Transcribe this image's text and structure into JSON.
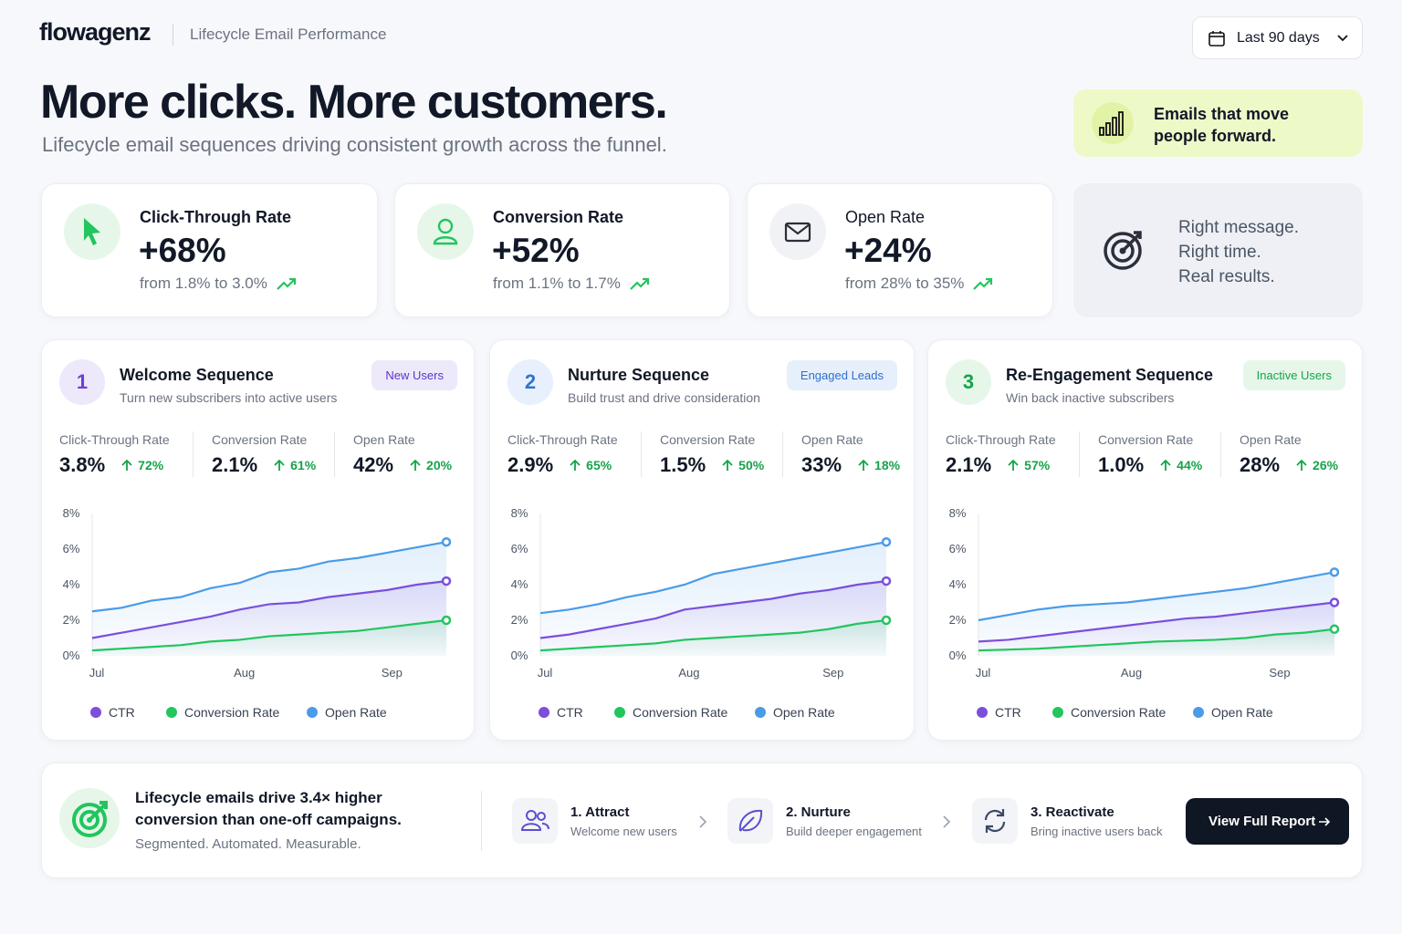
{
  "header": {
    "brand": "flowagenz",
    "subtitle": "Lifecycle Email Performance",
    "date_range": "Last 90 days"
  },
  "hero": {
    "title": "More clicks. More customers.",
    "subtitle": "Lifecycle email sequences driving consistent growth across the funnel.",
    "callout": [
      "Emails that move",
      "people forward."
    ]
  },
  "kpis": [
    {
      "label": "Click-Through Rate",
      "value": "+68%",
      "detail": "from 1.8% to 3.0%"
    },
    {
      "label": "Conversion Rate",
      "value": "+52%",
      "detail": "from 1.1% to 1.7%"
    },
    {
      "label": "Open Rate",
      "value": "+24%",
      "detail": "from 28% to 35%"
    }
  ],
  "tagline": [
    "Right message.",
    "Right time.",
    "Real results."
  ],
  "sequences": [
    {
      "number": "1",
      "title": "Welcome Sequence",
      "description": "Turn new subscribers into active users",
      "badge": "New Users",
      "metrics": [
        {
          "label": "Click-Through Rate",
          "value": "3.8%",
          "change": "72%"
        },
        {
          "label": "Conversion Rate",
          "value": "2.1%",
          "change": "61%"
        },
        {
          "label": "Open Rate",
          "value": "42%",
          "change": "20%"
        }
      ]
    },
    {
      "number": "2",
      "title": "Nurture Sequence",
      "description": "Build trust and drive consideration",
      "badge": "Engaged Leads",
      "metrics": [
        {
          "label": "Click-Through Rate",
          "value": "2.9%",
          "change": "65%"
        },
        {
          "label": "Conversion Rate",
          "value": "1.5%",
          "change": "50%"
        },
        {
          "label": "Open Rate",
          "value": "33%",
          "change": "18%"
        }
      ]
    },
    {
      "number": "3",
      "title": "Re-Engagement Sequence",
      "description": "Win back inactive subscribers",
      "badge": "Inactive Users",
      "metrics": [
        {
          "label": "Click-Through Rate",
          "value": "2.1%",
          "change": "57%"
        },
        {
          "label": "Conversion Rate",
          "value": "1.0%",
          "change": "44%"
        },
        {
          "label": "Open Rate",
          "value": "28%",
          "change": "26%"
        }
      ]
    }
  ],
  "chart_data": [
    {
      "type": "line",
      "categories": [
        "Jul",
        null,
        null,
        null,
        null,
        "Aug",
        null,
        null,
        null,
        null,
        "Sep",
        null,
        null
      ],
      "ylim": [
        0,
        8
      ],
      "yticks": [
        {
          "value": 0,
          "label": "0%"
        },
        {
          "value": 2,
          "label": "2%"
        },
        {
          "value": 4,
          "label": "4%"
        },
        {
          "value": 6,
          "label": "6%"
        },
        {
          "value": 8,
          "label": "8%"
        }
      ],
      "grid": false,
      "series": [
        {
          "name": "CTR",
          "color": "#7b4fdc",
          "values": [
            1.0,
            1.3,
            1.6,
            1.9,
            2.2,
            2.6,
            2.9,
            3.0,
            3.3,
            3.5,
            3.7,
            4.0,
            4.2
          ]
        },
        {
          "name": "Conversion Rate",
          "color": "#22c55e",
          "values": [
            0.3,
            0.4,
            0.5,
            0.6,
            0.8,
            0.9,
            1.1,
            1.2,
            1.3,
            1.4,
            1.6,
            1.8,
            2.0
          ]
        },
        {
          "name": "Open Rate",
          "color": "#4a9be8",
          "values": [
            2.5,
            2.7,
            3.1,
            3.3,
            3.8,
            4.1,
            4.7,
            4.9,
            5.3,
            5.5,
            5.8,
            6.1,
            6.4
          ]
        }
      ]
    },
    {
      "type": "line",
      "categories": [
        "Jul",
        null,
        null,
        null,
        null,
        "Aug",
        null,
        null,
        null,
        null,
        "Sep",
        null,
        null
      ],
      "ylim": [
        0,
        8
      ],
      "yticks": [
        {
          "value": 0,
          "label": "0%"
        },
        {
          "value": 2,
          "label": "2%"
        },
        {
          "value": 4,
          "label": "4%"
        },
        {
          "value": 6,
          "label": "6%"
        },
        {
          "value": 8,
          "label": "8%"
        }
      ],
      "grid": false,
      "series": [
        {
          "name": "CTR",
          "color": "#7b4fdc",
          "values": [
            1.0,
            1.2,
            1.5,
            1.8,
            2.1,
            2.6,
            2.8,
            3.0,
            3.2,
            3.5,
            3.7,
            4.0,
            4.2
          ]
        },
        {
          "name": "Conversion Rate",
          "color": "#22c55e",
          "values": [
            0.3,
            0.4,
            0.5,
            0.6,
            0.7,
            0.9,
            1.0,
            1.1,
            1.2,
            1.3,
            1.5,
            1.8,
            2.0
          ]
        },
        {
          "name": "Open Rate",
          "color": "#4a9be8",
          "values": [
            2.4,
            2.6,
            2.9,
            3.3,
            3.6,
            4.0,
            4.6,
            4.9,
            5.2,
            5.5,
            5.8,
            6.1,
            6.4
          ]
        }
      ]
    },
    {
      "type": "line",
      "categories": [
        "Jul",
        null,
        null,
        null,
        null,
        "Aug",
        null,
        null,
        null,
        null,
        "Sep",
        null,
        null
      ],
      "ylim": [
        0,
        8
      ],
      "yticks": [
        {
          "value": 0,
          "label": "0%"
        },
        {
          "value": 2,
          "label": "2%"
        },
        {
          "value": 4,
          "label": "4%"
        },
        {
          "value": 6,
          "label": "6%"
        },
        {
          "value": 8,
          "label": "8%"
        }
      ],
      "grid": false,
      "series": [
        {
          "name": "CTR",
          "color": "#7b4fdc",
          "values": [
            0.8,
            0.9,
            1.1,
            1.3,
            1.5,
            1.7,
            1.9,
            2.1,
            2.2,
            2.4,
            2.6,
            2.8,
            3.0
          ]
        },
        {
          "name": "Conversion Rate",
          "color": "#22c55e",
          "values": [
            0.3,
            0.35,
            0.4,
            0.5,
            0.6,
            0.7,
            0.8,
            0.85,
            0.9,
            1.0,
            1.2,
            1.3,
            1.5
          ]
        },
        {
          "name": "Open Rate",
          "color": "#4a9be8",
          "values": [
            2.0,
            2.3,
            2.6,
            2.8,
            2.9,
            3.0,
            3.2,
            3.4,
            3.6,
            3.8,
            4.1,
            4.4,
            4.7
          ]
        }
      ]
    }
  ],
  "footer": {
    "headline": "Lifecycle emails drive 3.4× higher conversion than one-off campaigns.",
    "subline": "Segmented. Automated. Measurable.",
    "steps": [
      {
        "title": "1. Attract",
        "subtitle": "Welcome new users"
      },
      {
        "title": "2. Nurture",
        "subtitle": "Build deeper engagement"
      },
      {
        "title": "3. Reactivate",
        "subtitle": "Bring inactive users back"
      }
    ],
    "button": "View Full Report"
  }
}
